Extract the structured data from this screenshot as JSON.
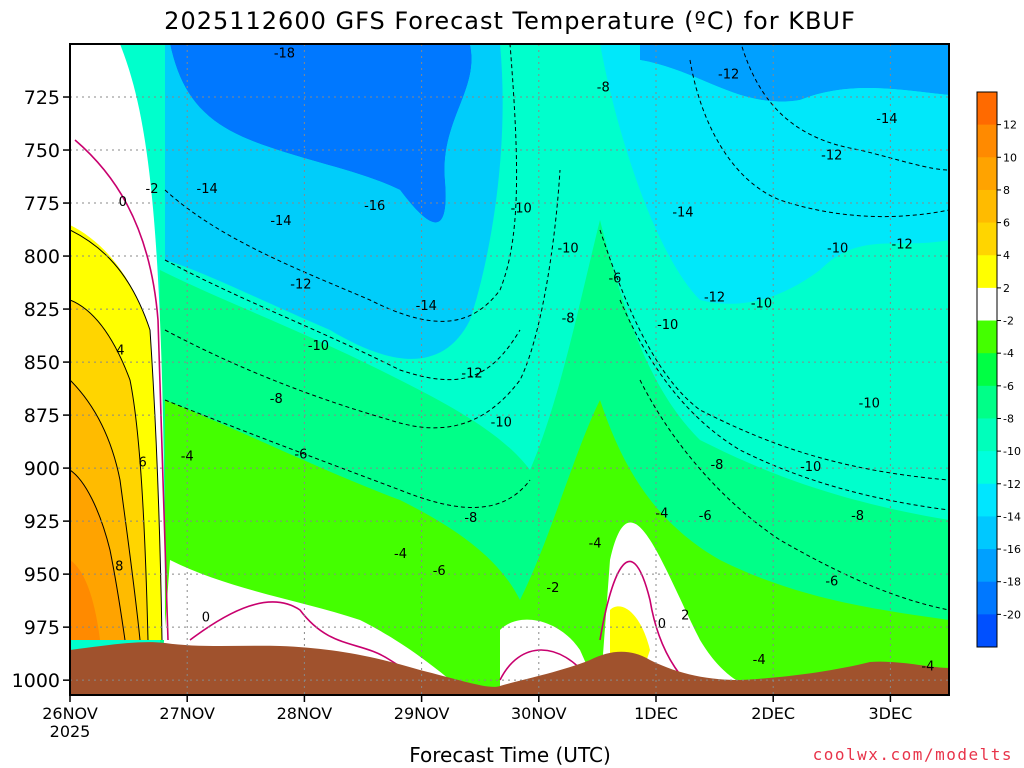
{
  "chart_data": {
    "type": "heatmap",
    "title": "2025112600 GFS Forecast Temperature (ºC) for KBUF",
    "xlabel": "Forecast Time (UTC)",
    "ylabel": "",
    "credit": "coolwx.com/modelts",
    "x_ticks": [
      {
        "label": "26NOV",
        "sub": "2025",
        "day": 0
      },
      {
        "label": "27NOV",
        "day": 1
      },
      {
        "label": "28NOV",
        "day": 2
      },
      {
        "label": "29NOV",
        "day": 3
      },
      {
        "label": "30NOV",
        "day": 4
      },
      {
        "label": "1DEC",
        "day": 5
      },
      {
        "label": "2DEC",
        "day": 6
      },
      {
        "label": "3DEC",
        "day": 7
      }
    ],
    "xlim": [
      0,
      7.5
    ],
    "y_ticks": [
      725,
      750,
      775,
      800,
      825,
      850,
      875,
      900,
      925,
      950,
      975,
      1000
    ],
    "ylim": [
      700,
      1007
    ],
    "colorbar": {
      "labels": [
        "12",
        "10",
        "8",
        "6",
        "4",
        "2",
        "-2",
        "-4",
        "-6",
        "-8",
        "-10",
        "-12",
        "-14",
        "-16",
        "-18",
        "-20"
      ],
      "colors": [
        "#ff6a00",
        "#ff8a00",
        "#ffa300",
        "#ffbb00",
        "#ffd500",
        "#ffff00",
        "#ffffff",
        "#44ff00",
        "#00ff44",
        "#00ff88",
        "#00ffbb",
        "#00ffdd",
        "#00e6ff",
        "#00c8ff",
        "#00a0ff",
        "#0078ff",
        "#0050ff"
      ]
    },
    "contour_labels": [
      {
        "text": "-18",
        "day": 1.83,
        "p": 704
      },
      {
        "text": "-8",
        "day": 4.55,
        "p": 720
      },
      {
        "text": "-12",
        "day": 5.62,
        "p": 714
      },
      {
        "text": "-14",
        "day": 6.97,
        "p": 735
      },
      {
        "text": "-12",
        "day": 6.5,
        "p": 752
      },
      {
        "text": "-2",
        "day": 0.7,
        "p": 768
      },
      {
        "text": "0",
        "day": 0.45,
        "p": 774
      },
      {
        "text": "-14",
        "day": 1.17,
        "p": 768
      },
      {
        "text": "-10",
        "day": 3.85,
        "p": 777
      },
      {
        "text": "-16",
        "day": 2.6,
        "p": 776
      },
      {
        "text": "-14",
        "day": 1.8,
        "p": 783
      },
      {
        "text": "-14",
        "day": 5.23,
        "p": 779
      },
      {
        "text": "-12",
        "day": 7.1,
        "p": 794
      },
      {
        "text": "-10",
        "day": 6.55,
        "p": 796
      },
      {
        "text": "-10",
        "day": 4.25,
        "p": 796
      },
      {
        "text": "-6",
        "day": 4.65,
        "p": 810
      },
      {
        "text": "-12",
        "day": 1.97,
        "p": 813
      },
      {
        "text": "-12",
        "day": 5.5,
        "p": 819
      },
      {
        "text": "-10",
        "day": 5.9,
        "p": 822
      },
      {
        "text": "-14",
        "day": 3.04,
        "p": 823
      },
      {
        "text": "-8",
        "day": 4.25,
        "p": 829
      },
      {
        "text": "-10",
        "day": 5.1,
        "p": 832
      },
      {
        "text": "4",
        "day": 0.43,
        "p": 844
      },
      {
        "text": "-10",
        "day": 2.12,
        "p": 842
      },
      {
        "text": "-12",
        "day": 3.43,
        "p": 855
      },
      {
        "text": "-8",
        "day": 1.76,
        "p": 867
      },
      {
        "text": "-10",
        "day": 6.82,
        "p": 869
      },
      {
        "text": "-10",
        "day": 3.68,
        "p": 878
      },
      {
        "text": "-6",
        "day": 1.97,
        "p": 893
      },
      {
        "text": "-4",
        "day": 1.0,
        "p": 894
      },
      {
        "text": "6",
        "day": 0.62,
        "p": 897
      },
      {
        "text": "-8",
        "day": 5.52,
        "p": 898
      },
      {
        "text": "-10",
        "day": 6.32,
        "p": 899
      },
      {
        "text": "-4",
        "day": 5.05,
        "p": 921
      },
      {
        "text": "-6",
        "day": 5.42,
        "p": 922
      },
      {
        "text": "-8",
        "day": 3.42,
        "p": 923
      },
      {
        "text": "-8",
        "day": 6.72,
        "p": 922
      },
      {
        "text": "-4",
        "day": 4.48,
        "p": 935
      },
      {
        "text": "-4",
        "day": 2.82,
        "p": 940
      },
      {
        "text": "8",
        "day": 0.42,
        "p": 946
      },
      {
        "text": "-6",
        "day": 3.15,
        "p": 948
      },
      {
        "text": "-6",
        "day": 6.5,
        "p": 953
      },
      {
        "text": "-2",
        "day": 4.12,
        "p": 956
      },
      {
        "text": "0",
        "day": 1.16,
        "p": 970
      },
      {
        "text": "0",
        "day": 5.05,
        "p": 973
      },
      {
        "text": "2",
        "day": 5.25,
        "p": 969
      },
      {
        "text": "-4",
        "day": 5.88,
        "p": 990
      },
      {
        "text": "-4",
        "day": 7.32,
        "p": 993
      }
    ]
  }
}
